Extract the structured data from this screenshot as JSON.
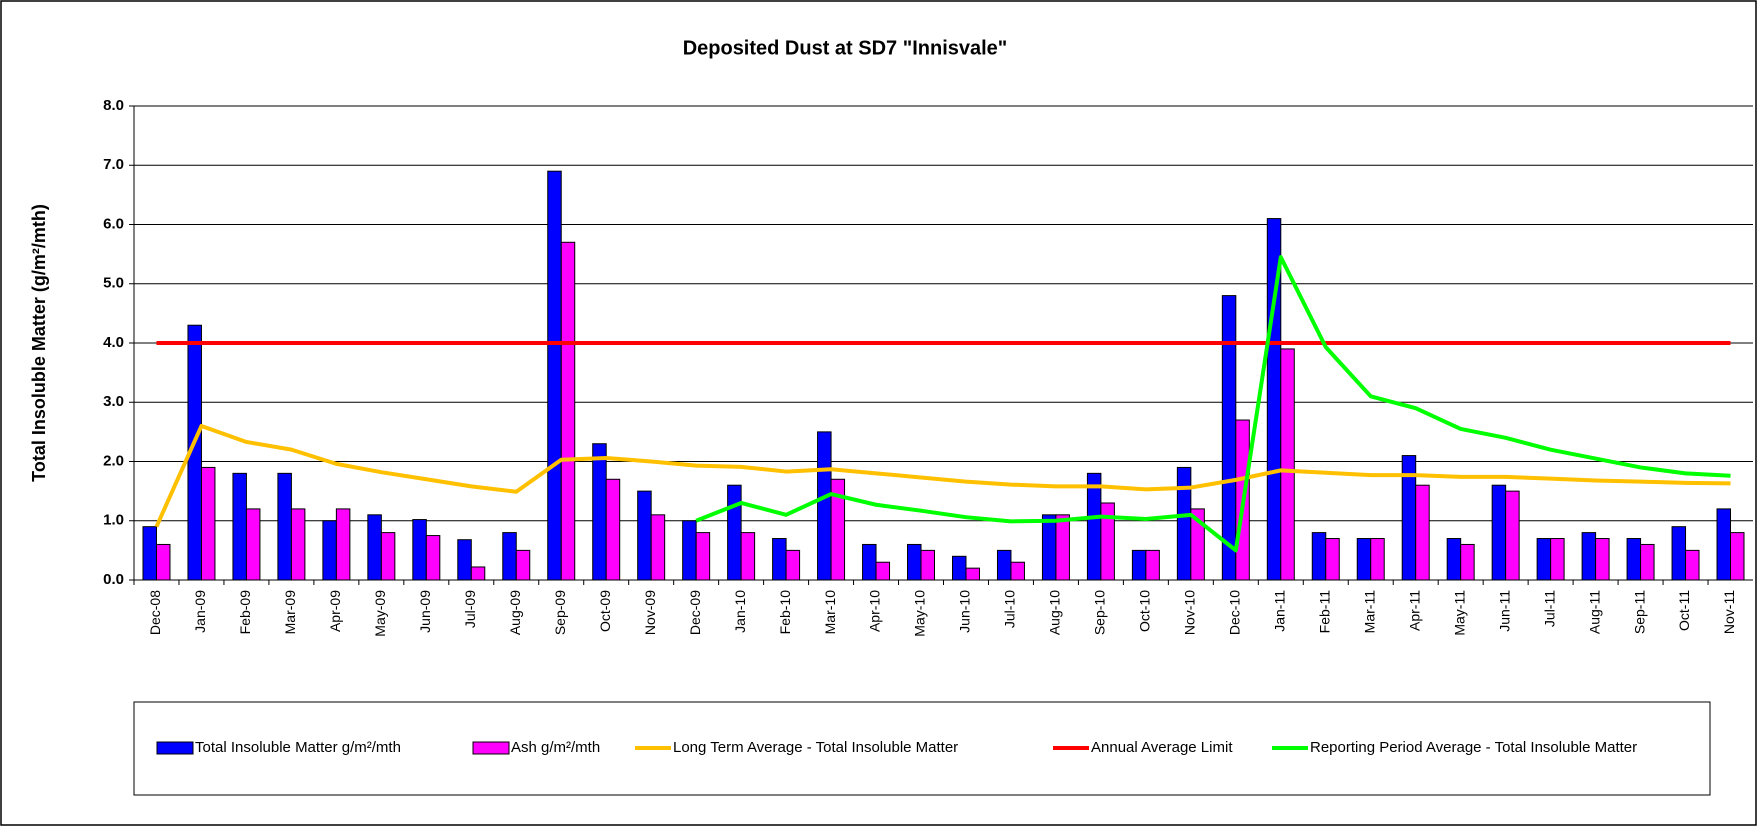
{
  "chart_data": {
    "type": "bar",
    "title": "Deposited Dust at SD7 \"Innisvale\"",
    "y_label": "Total Insoluble Matter  (g/m²/mth)",
    "categories": [
      "Dec-08",
      "Jan-09",
      "Feb-09",
      "Mar-09",
      "Apr-09",
      "May-09",
      "Jun-09",
      "Jul-09",
      "Aug-09",
      "Sep-09",
      "Oct-09",
      "Nov-09",
      "Dec-09",
      "Jan-10",
      "Feb-10",
      "Mar-10",
      "Apr-10",
      "May-10",
      "Jun-10",
      "Jul-10",
      "Aug-10",
      "Sep-10",
      "Oct-10",
      "Nov-10",
      "Dec-10",
      "Jan-11",
      "Feb-11",
      "Mar-11",
      "Apr-11",
      "May-11",
      "Jun-11",
      "Jul-11",
      "Aug-11",
      "Sep-11",
      "Oct-11",
      "Nov-11"
    ],
    "series": [
      {
        "name": "Total Insoluble Matter  g/m²/mth",
        "type": "bar",
        "color": "#0000ff",
        "values": [
          0.9,
          4.3,
          1.8,
          1.8,
          1.0,
          1.1,
          1.02,
          0.68,
          0.8,
          6.9,
          2.3,
          1.5,
          1.0,
          1.6,
          0.7,
          2.5,
          0.6,
          0.6,
          0.4,
          0.5,
          1.1,
          1.8,
          0.5,
          1.9,
          4.8,
          6.1,
          0.8,
          0.7,
          2.1,
          0.7,
          1.6,
          0.7,
          0.8,
          0.7,
          0.9,
          1.2
        ]
      },
      {
        "name": "Ash  g/m²/mth",
        "type": "bar",
        "color": "#ff00ff",
        "values": [
          0.6,
          1.9,
          1.2,
          1.2,
          1.2,
          0.8,
          0.75,
          0.22,
          0.5,
          5.7,
          1.7,
          1.1,
          0.8,
          0.8,
          0.5,
          1.7,
          0.3,
          0.5,
          0.2,
          0.3,
          1.1,
          1.3,
          0.5,
          1.2,
          2.7,
          3.9,
          0.7,
          0.7,
          1.6,
          0.6,
          1.5,
          0.7,
          0.7,
          0.6,
          0.5,
          0.8
        ]
      },
      {
        "name": "Long Term Average - Total Insoluble Matter",
        "type": "line",
        "color": "#ffc000",
        "values": [
          0.9,
          2.6,
          2.33,
          2.2,
          1.96,
          1.82,
          1.7,
          1.58,
          1.49,
          2.03,
          2.06,
          2.0,
          1.93,
          1.91,
          1.83,
          1.87,
          1.8,
          1.73,
          1.66,
          1.61,
          1.58,
          1.58,
          1.53,
          1.56,
          1.69,
          1.85,
          1.81,
          1.77,
          1.77,
          1.74,
          1.74,
          1.71,
          1.68,
          1.66,
          1.64,
          1.63
        ]
      },
      {
        "name": "Annual Average Limit",
        "type": "line",
        "color": "#ff0000",
        "values": [
          4,
          4,
          4,
          4,
          4,
          4,
          4,
          4,
          4,
          4,
          4,
          4,
          4,
          4,
          4,
          4,
          4,
          4,
          4,
          4,
          4,
          4,
          4,
          4,
          4,
          4,
          4,
          4,
          4,
          4,
          4,
          4,
          4,
          4,
          4,
          4
        ]
      },
      {
        "name": "Reporting Period Average - Total Insoluble Matter",
        "type": "line",
        "color": "#00ff00",
        "values": [
          null,
          null,
          null,
          null,
          null,
          null,
          null,
          null,
          null,
          null,
          null,
          null,
          1.0,
          1.3,
          1.1,
          1.45,
          1.27,
          1.17,
          1.06,
          0.99,
          1.0,
          1.07,
          1.03,
          1.1,
          0.5,
          5.45,
          3.93,
          3.1,
          2.9,
          2.55,
          2.4,
          2.2,
          2.05,
          1.9,
          1.8,
          1.76
        ]
      }
    ],
    "ylim": [
      0,
      8
    ],
    "yticks": [
      {
        "value": 0,
        "label": "0.0"
      },
      {
        "value": 1,
        "label": "1.0"
      },
      {
        "value": 2,
        "label": "2.0"
      },
      {
        "value": 3,
        "label": "3.0"
      },
      {
        "value": 4,
        "label": "4.0"
      },
      {
        "value": 5,
        "label": "5.0"
      },
      {
        "value": 6,
        "label": "6.0"
      },
      {
        "value": 7,
        "label": "7.0"
      },
      {
        "value": 8,
        "label": "8.0"
      }
    ],
    "grid": true,
    "legend": "bottom"
  }
}
